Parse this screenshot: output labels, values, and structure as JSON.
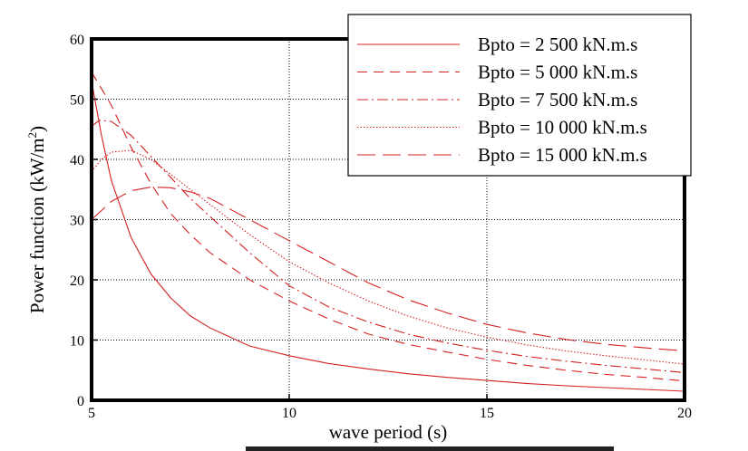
{
  "chart_data": {
    "type": "line",
    "xlabel": "wave period (s)",
    "ylabel_main": "Power function (kW/m",
    "ylabel_sup": "2",
    "ylabel_close": ")",
    "xlim": [
      5,
      20
    ],
    "ylim": [
      0,
      60
    ],
    "xticks": [
      5,
      10,
      15,
      20
    ],
    "yticks": [
      0,
      10,
      20,
      30,
      40,
      50,
      60
    ],
    "grid": true,
    "legend_position": "top-right",
    "line_color": "#d42020",
    "series": [
      {
        "name": "Bpto = 2 500 kN.m.s",
        "dash": "solid",
        "x": [
          5,
          5.25,
          5.5,
          6,
          6.5,
          7,
          7.5,
          8,
          9,
          10,
          11,
          12,
          13,
          14,
          15,
          16,
          17,
          18,
          19,
          20
        ],
        "y": [
          53,
          44,
          36.5,
          27,
          21,
          17,
          14,
          12,
          9,
          7.4,
          6.1,
          5.2,
          4.4,
          3.8,
          3.3,
          2.8,
          2.4,
          2.1,
          1.8,
          1.5
        ]
      },
      {
        "name": "Bpto = 5 000 kN.m.s",
        "dash": "dashed",
        "x": [
          5,
          5.5,
          6,
          6.5,
          7,
          7.5,
          8,
          9,
          10,
          11,
          12,
          13,
          14,
          15,
          16,
          17,
          18,
          19,
          20
        ],
        "y": [
          54.5,
          49,
          42,
          36,
          31,
          27.5,
          24.5,
          20,
          16.5,
          13.5,
          11,
          9.3,
          8,
          6.8,
          5.8,
          5,
          4.3,
          3.8,
          3.2
        ]
      },
      {
        "name": "Bpto = 7 500 kN.m.s",
        "dash": "dashdot",
        "x": [
          5,
          5.2,
          5.5,
          6,
          6.5,
          7,
          7.5,
          8,
          9,
          10,
          11,
          12,
          13,
          14,
          15,
          16,
          17,
          18,
          19,
          20
        ],
        "y": [
          45.5,
          46.5,
          46.3,
          44,
          40.5,
          37,
          33.5,
          30.5,
          24.5,
          19,
          15.5,
          13,
          11,
          9.5,
          8.3,
          7.3,
          6.5,
          5.8,
          5.2,
          4.6
        ]
      },
      {
        "name": "Bpto = 10 000 kN.m.s",
        "dash": "dotted",
        "x": [
          5,
          5.25,
          5.5,
          6,
          6.5,
          7,
          7.5,
          8,
          9,
          10,
          11,
          12,
          13,
          14,
          15,
          16,
          17,
          18,
          19,
          20
        ],
        "y": [
          38,
          40,
          41.2,
          41.5,
          40,
          37.5,
          35,
          32.5,
          27.5,
          23,
          19.5,
          16.5,
          14,
          12,
          10.5,
          9.2,
          8.2,
          7.4,
          6.7,
          6
        ]
      },
      {
        "name": "Bpto = 15 000 kN.m.s",
        "dash": "longdash",
        "x": [
          5,
          5.5,
          6,
          6.5,
          7,
          7.5,
          8,
          9,
          10,
          11,
          12,
          13,
          14,
          15,
          16,
          17,
          18,
          19,
          20
        ],
        "y": [
          30,
          33,
          34.8,
          35.4,
          35.3,
          34.6,
          33.5,
          30,
          26.5,
          23,
          19.5,
          16.7,
          14.5,
          12.6,
          11.2,
          10.1,
          9.3,
          8.7,
          8.2
        ]
      }
    ]
  }
}
